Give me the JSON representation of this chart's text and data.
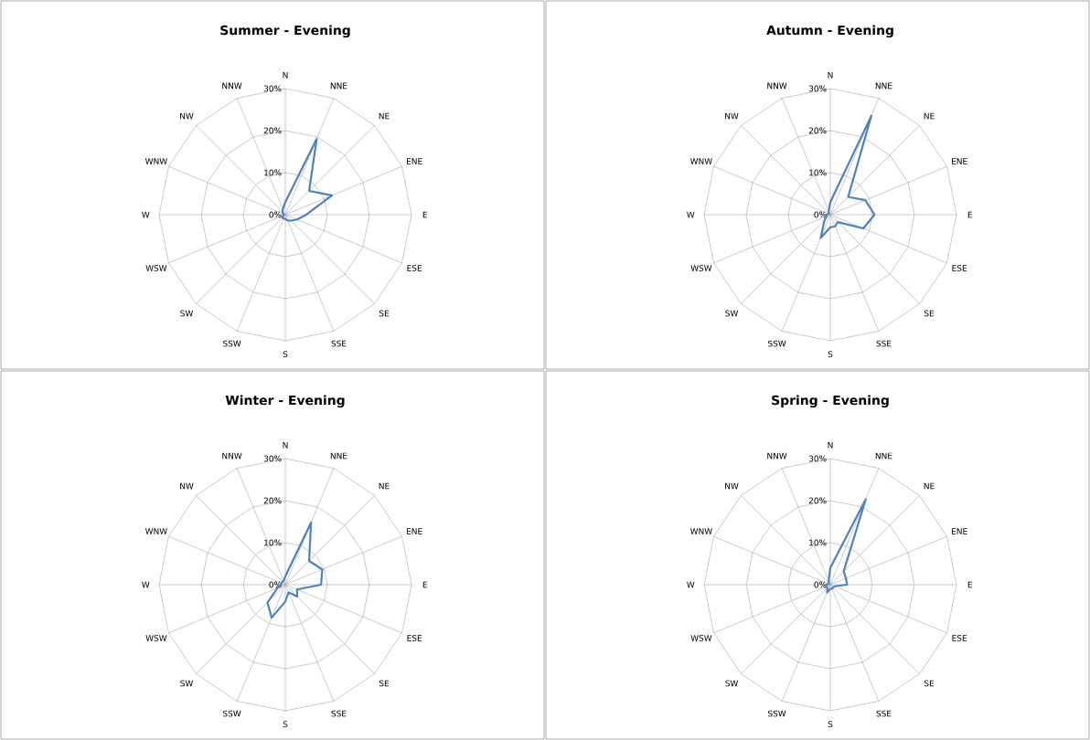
{
  "chart_data": [
    {
      "type": "radar",
      "title": "Summer - Evening",
      "categories": [
        "N",
        "NNE",
        "NE",
        "ENE",
        "E",
        "ESE",
        "SE",
        "SSE",
        "S",
        "SSW",
        "SW",
        "WSW",
        "W",
        "WNW",
        "NW",
        "NNW"
      ],
      "ylim": [
        0,
        30
      ],
      "yticks": [
        {
          "value": 0,
          "label": "0%"
        },
        {
          "value": 10,
          "label": "10%"
        },
        {
          "value": 20,
          "label": "20%"
        },
        {
          "value": 30,
          "label": "30%"
        }
      ],
      "grid": true,
      "series": [
        {
          "color": "#4f81bd",
          "values": [
            3,
            19.5,
            8,
            12,
            5,
            3,
            2,
            1.5,
            1,
            1,
            1,
            0.5,
            0.5,
            0.5,
            1,
            1.5
          ]
        }
      ]
    },
    {
      "type": "radar",
      "title": "Autumn - Evening",
      "categories": [
        "N",
        "NNE",
        "NE",
        "ENE",
        "E",
        "ESE",
        "SE",
        "SSE",
        "S",
        "SSW",
        "SW",
        "WSW",
        "W",
        "WNW",
        "NW",
        "NNW"
      ],
      "ylim": [
        0,
        30
      ],
      "yticks": [
        {
          "value": 0,
          "label": "0%"
        },
        {
          "value": 10,
          "label": "10%"
        },
        {
          "value": 20,
          "label": "20%"
        },
        {
          "value": 30,
          "label": "30%"
        }
      ],
      "grid": true,
      "series": [
        {
          "color": "#4f81bd",
          "values": [
            3,
            25.5,
            6,
            9,
            10.5,
            8.5,
            2.5,
            3,
            3,
            6,
            2,
            1,
            1,
            0.5,
            0.5,
            1
          ]
        }
      ]
    },
    {
      "type": "radar",
      "title": "Winter - Evening",
      "categories": [
        "N",
        "NNE",
        "NE",
        "ENE",
        "E",
        "ESE",
        "SE",
        "SSE",
        "S",
        "SSW",
        "SW",
        "WSW",
        "W",
        "WNW",
        "NW",
        "NNW"
      ],
      "ylim": [
        0,
        30
      ],
      "yticks": [
        {
          "value": 0,
          "label": "0%"
        },
        {
          "value": 10,
          "label": "10%"
        },
        {
          "value": 20,
          "label": "20%"
        },
        {
          "value": 30,
          "label": "30%"
        }
      ],
      "grid": true,
      "series": [
        {
          "color": "#4f81bd",
          "values": [
            2,
            16,
            8,
            9.5,
            8.5,
            3,
            4,
            2,
            4,
            8.5,
            6,
            2,
            1,
            1,
            1,
            1
          ]
        }
      ]
    },
    {
      "type": "radar",
      "title": "Spring - Evening",
      "categories": [
        "N",
        "NNE",
        "NE",
        "ENE",
        "E",
        "ESE",
        "SE",
        "SSE",
        "S",
        "SSW",
        "SW",
        "WSW",
        "W",
        "WNW",
        "NW",
        "NNW"
      ],
      "ylim": [
        0,
        30
      ],
      "yticks": [
        {
          "value": 0,
          "label": "0%"
        },
        {
          "value": 10,
          "label": "10%"
        },
        {
          "value": 20,
          "label": "20%"
        },
        {
          "value": 30,
          "label": "30%"
        }
      ],
      "grid": true,
      "series": [
        {
          "color": "#4f81bd",
          "values": [
            4,
            22,
            4.5,
            4,
            4,
            1,
            1,
            1,
            1,
            2,
            1,
            1,
            1,
            0.5,
            0.5,
            1
          ]
        }
      ]
    }
  ]
}
